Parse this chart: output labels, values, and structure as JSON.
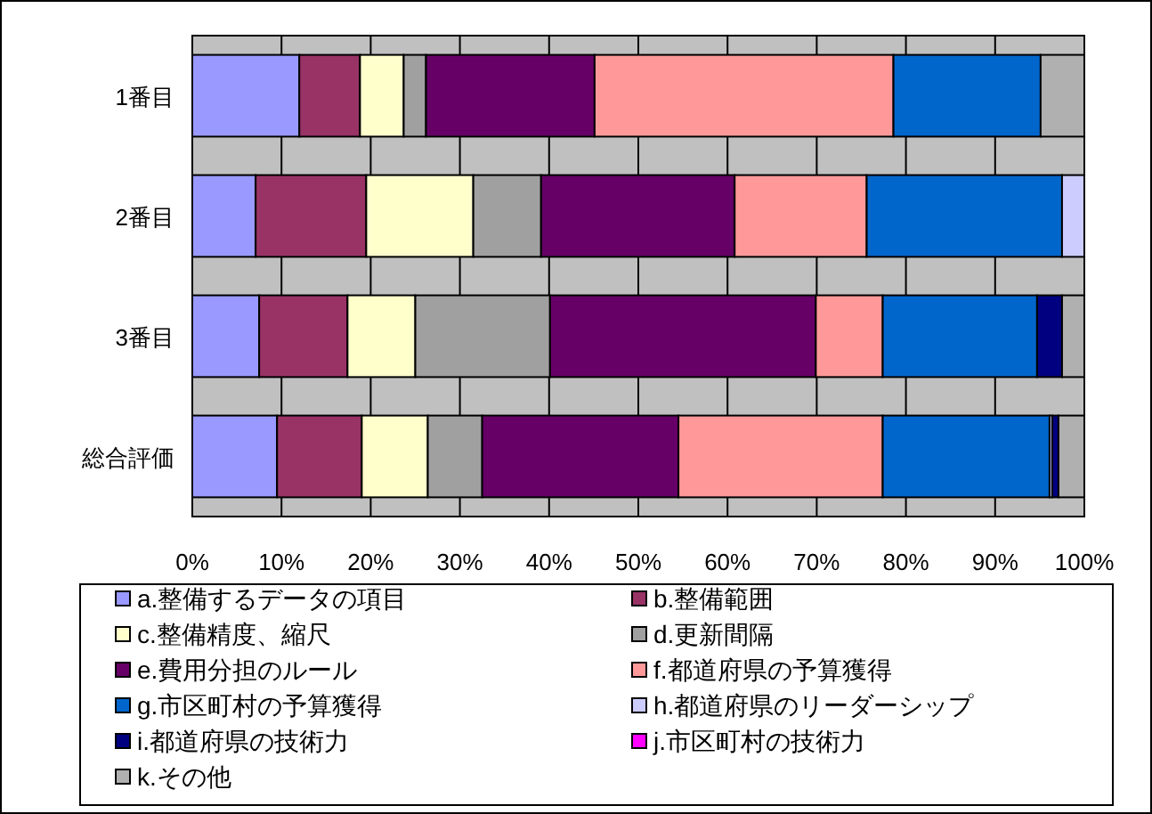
{
  "chart_data": {
    "type": "bar",
    "orientation": "horizontal",
    "stacked": true,
    "categories": [
      "1番目",
      "2番目",
      "3番目",
      "総合評価"
    ],
    "series": [
      {
        "name": "a.整備するデータの項目",
        "color": "#9999ff",
        "values": [
          12.0,
          7.1,
          7.5,
          9.5
        ]
      },
      {
        "name": "b.整備範囲",
        "color": "#993366",
        "values": [
          6.8,
          12.4,
          9.9,
          9.5
        ]
      },
      {
        "name": "c.整備精度、縮尺",
        "color": "#ffffcc",
        "values": [
          4.9,
          12.0,
          7.6,
          7.4
        ]
      },
      {
        "name": "d.更新間隔",
        "color": "#a0a0a0",
        "values": [
          2.5,
          7.6,
          15.1,
          6.1
        ]
      },
      {
        "name": "e.費用分担のルール",
        "color": "#660066",
        "values": [
          18.9,
          21.7,
          29.8,
          22.0
        ]
      },
      {
        "name": "f.都道府県の予算獲得",
        "color": "#ff9999",
        "values": [
          33.5,
          14.8,
          7.5,
          22.9
        ]
      },
      {
        "name": "g.市区町村の予算獲得",
        "color": "#0066cc",
        "values": [
          16.5,
          21.9,
          17.3,
          18.7
        ]
      },
      {
        "name": "h.都道府県のリーダーシップ",
        "color": "#ccccff",
        "values": [
          0,
          2.5,
          0,
          0.3
        ]
      },
      {
        "name": "i.都道府県の技術力",
        "color": "#000080",
        "values": [
          0,
          0,
          2.8,
          0.7
        ]
      },
      {
        "name": "j.市区町村の技術力",
        "color": "#ff00ff",
        "values": [
          0,
          0,
          0,
          0
        ]
      },
      {
        "name": "k.その他",
        "color": "#b0b0b0",
        "values": [
          4.9,
          0,
          2.5,
          2.9
        ]
      }
    ],
    "xlim": [
      0,
      100
    ],
    "xticks": [
      {
        "value": 0,
        "label": "0%"
      },
      {
        "value": 10,
        "label": "10%"
      },
      {
        "value": 20,
        "label": "20%"
      },
      {
        "value": 30,
        "label": "30%"
      },
      {
        "value": 40,
        "label": "40%"
      },
      {
        "value": 50,
        "label": "50%"
      },
      {
        "value": 60,
        "label": "60%"
      },
      {
        "value": 70,
        "label": "70%"
      },
      {
        "value": 80,
        "label": "80%"
      },
      {
        "value": 90,
        "label": "90%"
      },
      {
        "value": 100,
        "label": "100%"
      }
    ],
    "grid": "x",
    "legend": "bottom"
  }
}
